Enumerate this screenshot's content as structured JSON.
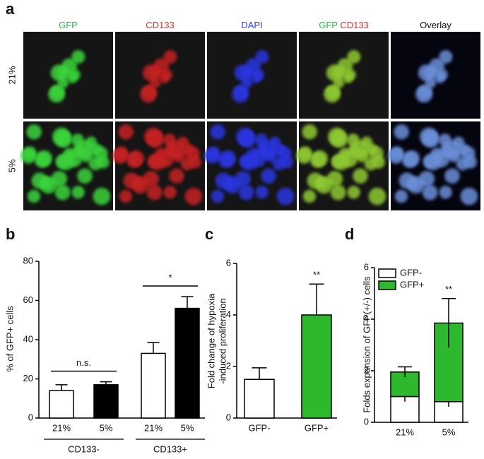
{
  "panel_labels": [
    "a",
    "b",
    "c",
    "d"
  ],
  "images": {
    "columns": [
      {
        "parts": [
          "GFP"
        ],
        "colors": [
          "#2fb84a"
        ]
      },
      {
        "parts": [
          "CD133"
        ],
        "colors": [
          "#e0302a"
        ]
      },
      {
        "parts": [
          "DAPI"
        ],
        "colors": [
          "#2e3ee6"
        ]
      },
      {
        "parts": [
          "GFP",
          "CD133"
        ],
        "colors": [
          "#2fb84a",
          "#e0302a"
        ]
      },
      {
        "parts": [
          "Overlay"
        ],
        "colors": [
          "#111111"
        ]
      }
    ],
    "rows": [
      "21%",
      "5%"
    ]
  },
  "chart_data": [
    {
      "type": "bar",
      "ylabel": "% of GFP+ cells",
      "categories": [
        "21%",
        "5%",
        "21%",
        "5%"
      ],
      "groups": [
        {
          "label": "CD133-",
          "members": [
            0,
            1
          ]
        },
        {
          "label": "CD133+",
          "members": [
            2,
            3
          ]
        }
      ],
      "values": [
        14,
        17,
        33,
        56
      ],
      "errors": [
        3,
        1.5,
        5.5,
        6
      ],
      "colors": [
        "#ffffff",
        "#000000",
        "#ffffff",
        "#000000"
      ],
      "ylim": [
        0,
        80
      ],
      "yticks": [
        0,
        20,
        40,
        60,
        80
      ],
      "annotations": [
        {
          "text": "n.s.",
          "between": [
            0,
            1
          ]
        },
        {
          "text": "*",
          "between": [
            2,
            3
          ]
        }
      ]
    },
    {
      "type": "bar",
      "ylabel": [
        "Fold change of  hypoxia",
        "-induced proliferation"
      ],
      "categories": [
        "GFP-",
        "GFP+"
      ],
      "values": [
        1.5,
        4.0
      ],
      "errors": [
        0.45,
        1.2
      ],
      "colors": [
        "#ffffff",
        "#2db82d"
      ],
      "ylim": [
        0,
        6
      ],
      "yticks": [
        0,
        2,
        4,
        6
      ],
      "annotations": [
        {
          "text": "**",
          "at": 1
        }
      ]
    },
    {
      "type": "stacked_bar",
      "ylabel": "Folds expansion of GFP(+/-) cells",
      "categories": [
        "21%",
        "5%"
      ],
      "series": [
        {
          "name": "GFP-",
          "color": "#ffffff",
          "values": [
            1.0,
            0.8
          ],
          "errors": [
            0.2,
            0.2
          ]
        },
        {
          "name": "GFP+",
          "color": "#2db82d",
          "values": [
            0.95,
            3.05
          ],
          "errors": [
            0.2,
            0.95
          ]
        }
      ],
      "ylim": [
        0,
        6
      ],
      "yticks": [
        0,
        2,
        4,
        6
      ],
      "legend": "top-left",
      "annotations": [
        {
          "text": "**",
          "at": 1
        }
      ]
    }
  ]
}
